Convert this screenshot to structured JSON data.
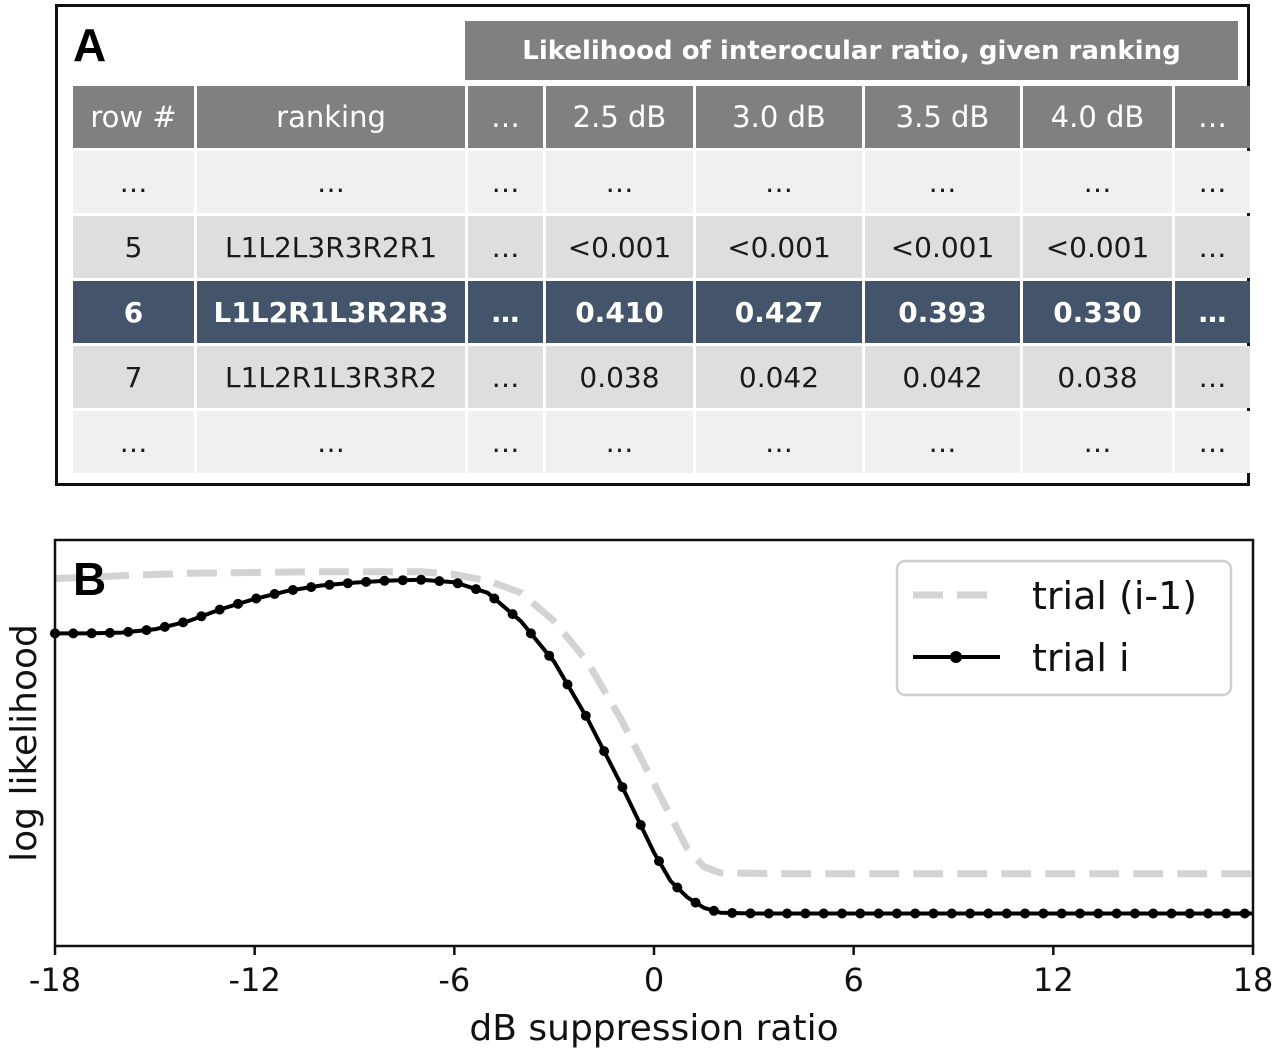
{
  "panel_a": {
    "letter": "A",
    "super_header": "Likelihood of interocular ratio, given ranking",
    "columns": [
      "row #",
      "ranking",
      "…",
      "2.5 dB",
      "3.0 dB",
      "3.5 dB",
      "4.0 dB",
      "…"
    ],
    "rows": [
      {
        "cells": [
          "…",
          "…",
          "…",
          "…",
          "…",
          "…",
          "…",
          "…"
        ],
        "highlight": false
      },
      {
        "cells": [
          "5",
          "L1L2L3R3R2R1",
          "…",
          "<0.001",
          "<0.001",
          "<0.001",
          "<0.001",
          "…"
        ],
        "highlight": false
      },
      {
        "cells": [
          "6",
          "L1L2R1L3R2R3",
          "…",
          "0.410",
          "0.427",
          "0.393",
          "0.330",
          "…"
        ],
        "highlight": true
      },
      {
        "cells": [
          "7",
          "L1L2R1L3R3R2",
          "…",
          "0.038",
          "0.042",
          "0.042",
          "0.038",
          "…"
        ],
        "highlight": false
      },
      {
        "cells": [
          "…",
          "…",
          "…",
          "…",
          "…",
          "…",
          "…",
          "…"
        ],
        "highlight": false
      }
    ],
    "colors": {
      "header": "#808080",
      "highlight": "#44546a",
      "row_light": "#f0f0f0",
      "row_dark": "#dedede"
    }
  },
  "panel_b": {
    "letter": "B",
    "chart_data": {
      "type": "line",
      "title": "",
      "xlabel": "dB suppression ratio",
      "ylabel": "log likelihood",
      "xlim": [
        -18,
        18
      ],
      "ylim": [
        0,
        1
      ],
      "xticks": [
        "-18",
        "-12",
        "-6",
        "0",
        "6",
        "12",
        "18"
      ],
      "grid": false,
      "legend_position": "top-right",
      "series": [
        {
          "name": "trial (i-1)",
          "style": "dashed",
          "color": "#d3d3d3",
          "x": [
            -18,
            -16,
            -14,
            -12,
            -10,
            -8,
            -7,
            -6,
            -5,
            -4,
            -3,
            -2,
            -1,
            0,
            0.5,
            1,
            1.5,
            2,
            4,
            8,
            12,
            18
          ],
          "y": [
            0.905,
            0.912,
            0.918,
            0.92,
            0.922,
            0.922,
            0.922,
            0.915,
            0.9,
            0.87,
            0.8,
            0.7,
            0.56,
            0.4,
            0.32,
            0.24,
            0.195,
            0.18,
            0.178,
            0.178,
            0.178,
            0.178
          ]
        },
        {
          "name": "trial i",
          "style": "solid-dots",
          "color": "#000000",
          "x": [
            -18,
            -17,
            -16,
            -15,
            -14.5,
            -14,
            -13,
            -12,
            -11,
            -10,
            -9,
            -8,
            -7,
            -6,
            -5,
            -4,
            -3,
            -2,
            -1,
            0,
            0.5,
            1,
            1.5,
            2,
            3,
            4,
            6,
            8,
            10,
            12,
            14,
            16,
            18
          ],
          "y": [
            0.77,
            0.77,
            0.772,
            0.78,
            0.79,
            0.8,
            0.83,
            0.855,
            0.875,
            0.888,
            0.895,
            0.9,
            0.902,
            0.896,
            0.87,
            0.8,
            0.7,
            0.56,
            0.4,
            0.23,
            0.16,
            0.12,
            0.094,
            0.082,
            0.08,
            0.08,
            0.08,
            0.08,
            0.08,
            0.08,
            0.08,
            0.08,
            0.08
          ]
        }
      ]
    }
  }
}
